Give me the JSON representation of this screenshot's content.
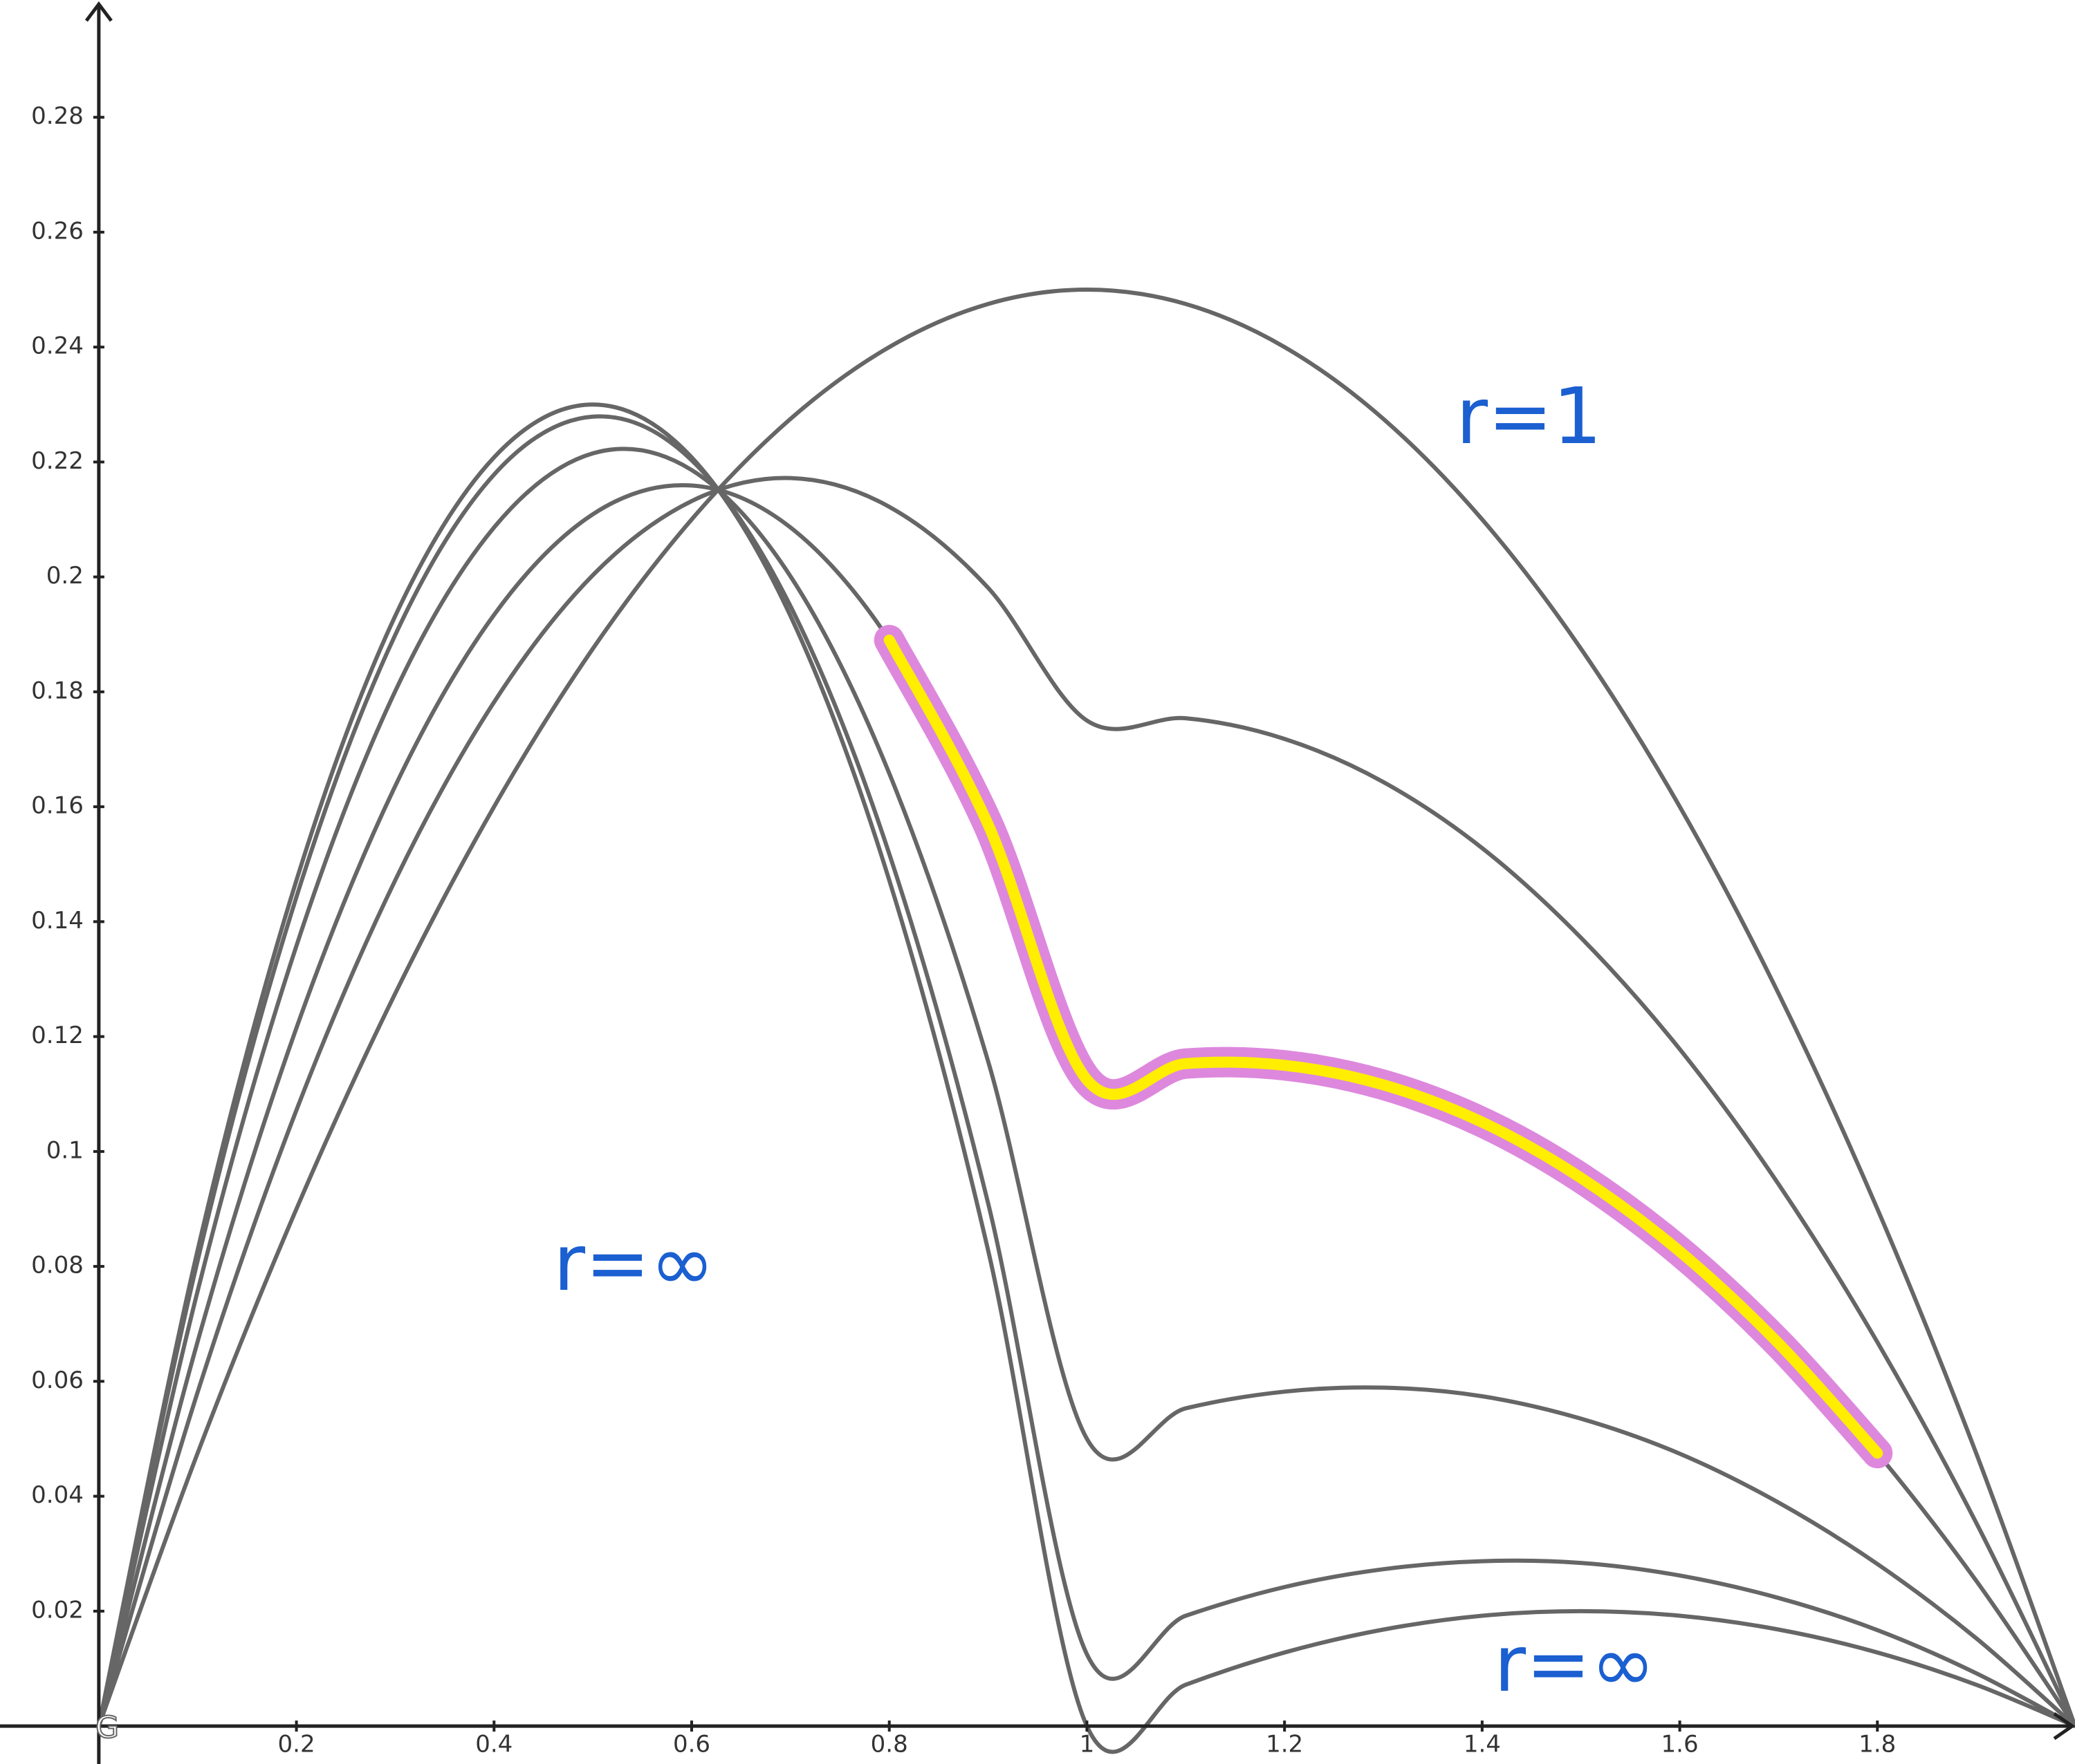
{
  "chart_data": {
    "type": "line",
    "x": [
      0,
      0.1,
      0.2,
      0.3,
      0.4,
      0.5,
      0.6,
      0.7,
      0.8,
      0.9,
      1,
      1.1,
      1.2,
      1.3,
      1.4,
      1.5,
      1.6,
      1.7,
      1.8,
      1.9,
      2
    ],
    "series": [
      {
        "color": "#666666",
        "values": [
          0,
          0.0475,
          0.09,
          0.1275,
          0.16,
          0.1875,
          0.21,
          0.2275,
          0.24,
          0.2475,
          0.25,
          0.2475,
          0.24,
          0.2275,
          0.21,
          0.1875,
          0.16,
          0.1275,
          0.09,
          0.0475,
          0
        ]
      },
      {
        "color": "#666666",
        "values": [
          0,
          0.0581,
          0.1072,
          0.1472,
          0.1782,
          0.2003,
          0.2132,
          0.2172,
          0.2122,
          0.1981,
          0.175,
          0.1754,
          0.1718,
          0.1643,
          0.1528,
          0.1372,
          0.1178,
          0.0943,
          0.0668,
          0.0354,
          0
        ]
      },
      {
        "color": "#666666",
        "values": [
          0,
          0.0669,
          0.1215,
          0.1636,
          0.1934,
          0.2109,
          0.2159,
          0.2086,
          0.189,
          0.1569,
          0.1125,
          0.1153,
          0.115,
          0.1116,
          0.1051,
          0.0954,
          0.0826,
          0.0666,
          0.0475,
          0.0253,
          0
        ]
      },
      {
        "color": "#666666",
        "values": [
          0,
          0.0757,
          0.1358,
          0.1801,
          0.2086,
          0.2215,
          0.2186,
          0.2001,
          0.1658,
          0.1157,
          0.05,
          0.0553,
          0.0582,
          0.0589,
          0.0574,
          0.0535,
          0.0474,
          0.0389,
          0.0282,
          0.0153,
          0
        ]
      },
      {
        "color": "#666666",
        "values": [
          0,
          0.081,
          0.1443,
          0.1899,
          0.2178,
          0.2279,
          0.2203,
          0.1949,
          0.1518,
          0.091,
          0.0125,
          0.0192,
          0.0242,
          0.0273,
          0.0287,
          0.0284,
          0.0262,
          0.0223,
          0.0167,
          0.0092,
          0
        ]
      },
      {
        "color": "#666666",
        "values": [
          0,
          0.0828,
          0.1472,
          0.1932,
          0.2208,
          0.23,
          0.2208,
          0.1932,
          0.1472,
          0.0828,
          0,
          0.0072,
          0.0128,
          0.0168,
          0.0192,
          0.02,
          0.0192,
          0.0168,
          0.0128,
          0.0072,
          0
        ]
      },
      {
        "color": "#dd88dd",
        "inner_color": "#ffee00",
        "values": [
          null,
          null,
          null,
          null,
          null,
          null,
          null,
          null,
          0.189,
          0.1569,
          0.1125,
          0.1153,
          0.115,
          0.1116,
          0.1051,
          0.0954,
          0.0826,
          0.0666,
          0.0475,
          null,
          null
        ]
      }
    ],
    "xlim": [
      -0.1,
      2.0
    ],
    "ylim": [
      -0.0066,
      0.3004
    ],
    "xticks": [
      0.2,
      0.4,
      0.6,
      0.8,
      1,
      1.2,
      1.4,
      1.6,
      1.8
    ],
    "yticks": [
      0.02,
      0.04,
      0.06,
      0.08,
      0.1,
      0.12,
      0.14,
      0.16,
      0.18,
      0.2,
      0.22,
      0.24,
      0.26,
      0.28
    ],
    "grid": false,
    "annotations": [
      "r=1",
      "r=∞",
      "r=∞"
    ],
    "origin_label": "G"
  }
}
